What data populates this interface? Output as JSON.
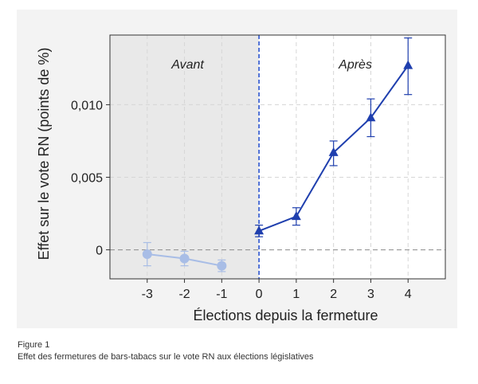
{
  "chart_data": {
    "type": "line",
    "xlabel": "Élections depuis la fermeture",
    "ylabel": "Effet sur le vote RN (points de %)",
    "xlim": [
      -4,
      5
    ],
    "ylim": [
      -0.002,
      0.0148
    ],
    "x_ticks": [
      -3,
      -2,
      -1,
      0,
      1,
      2,
      3,
      4
    ],
    "x_tick_labels": [
      "-3",
      "-2",
      "-1",
      "0",
      "1",
      "2",
      "3",
      "4"
    ],
    "y_ticks": [
      0,
      0.005,
      0.01
    ],
    "y_tick_labels": [
      "0",
      "0,005",
      "0,010"
    ],
    "grid": true,
    "regions": [
      {
        "label": "Avant",
        "from": -4,
        "to": 0,
        "shaded": true
      },
      {
        "label": "Après",
        "from": 0,
        "to": 5,
        "shaded": false
      }
    ],
    "series": [
      {
        "color": "#a8bde6",
        "marker": "circle",
        "x": [
          -3,
          -2,
          -1
        ],
        "y": [
          -0.0003,
          -0.0006,
          -0.0011
        ],
        "err_low": [
          -0.0011,
          -0.0011,
          -0.0015
        ],
        "err_high": [
          0.0005,
          -0.0001,
          -0.0007
        ]
      },
      {
        "color": "#1f3fae",
        "marker": "triangle",
        "x": [
          0,
          1,
          2,
          3,
          4
        ],
        "y": [
          0.0013,
          0.0023,
          0.0067,
          0.0091,
          0.0127
        ],
        "err_low": [
          0.0009,
          0.0017,
          0.0058,
          0.0078,
          0.0107
        ],
        "err_high": [
          0.0017,
          0.0029,
          0.0075,
          0.0104,
          0.0146
        ]
      }
    ]
  },
  "caption": {
    "figure_number": "Figure 1",
    "text": "Effet des fermetures de bars-tabacs sur le vote RN aux élections législatives"
  }
}
